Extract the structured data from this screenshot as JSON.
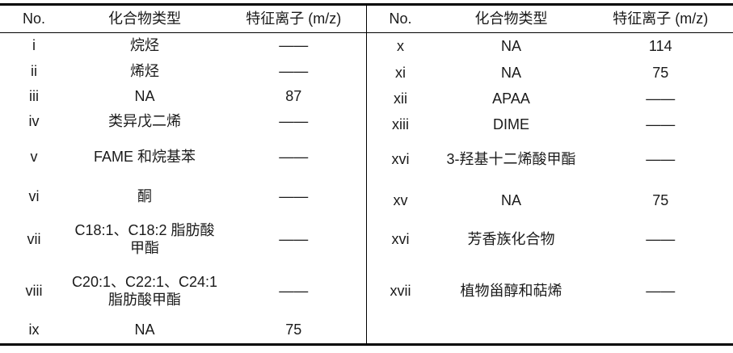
{
  "table": {
    "columns": [
      "No.",
      "化合物类型",
      "特征离子 (m/z)"
    ],
    "left_rows": [
      {
        "no": "i",
        "type": "烷烃",
        "ion": "——"
      },
      {
        "no": "ii",
        "type": "烯烃",
        "ion": "——"
      },
      {
        "no": "iii",
        "type": "NA",
        "ion": "87"
      },
      {
        "no": "iv",
        "type": "类异戊二烯",
        "ion": "——"
      },
      {
        "no": "v",
        "type": "FAME 和烷基苯",
        "ion": "——"
      },
      {
        "no": "vi",
        "type": "酮",
        "ion": "——"
      },
      {
        "no": "vii",
        "type": "C18:1、C18:2 脂肪酸\n甲酯",
        "ion": "——"
      },
      {
        "no": "viii",
        "type": "C20:1、C22:1、C24:1\n脂肪酸甲酯",
        "ion": "——"
      },
      {
        "no": "ix",
        "type": "NA",
        "ion": "75"
      }
    ],
    "right_rows": [
      {
        "no": "x",
        "type": "NA",
        "ion": "114"
      },
      {
        "no": "xi",
        "type": "NA",
        "ion": "75"
      },
      {
        "no": "xii",
        "type": "APAA",
        "ion": "——"
      },
      {
        "no": "xiii",
        "type": "DIME",
        "ion": "——"
      },
      {
        "no": "xvi",
        "type": "3-羟基十二烯酸甲酯",
        "ion": "——"
      },
      {
        "no": "xv",
        "type": "NA",
        "ion": "75"
      },
      {
        "no": "xvi",
        "type": "芳香族化合物",
        "ion": "——"
      },
      {
        "no": "xvii",
        "type": "植物甾醇和萜烯",
        "ion": "——"
      }
    ]
  }
}
